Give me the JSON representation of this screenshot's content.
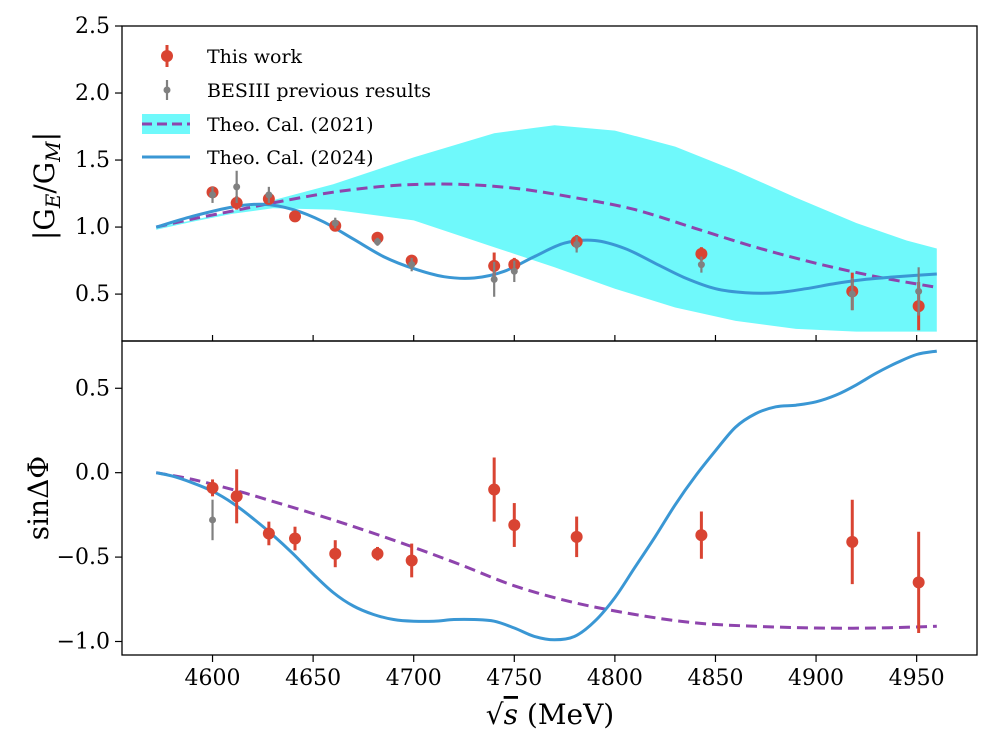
{
  "chart_data": [
    {
      "panel": "top",
      "type": "line",
      "ylabel": "|G_E/G_M|",
      "ylabel_parts": [
        "|G",
        "E",
        "/G",
        "M",
        "|"
      ],
      "xlim": [
        4555,
        4980
      ],
      "ylim": [
        0.15,
        2.5
      ],
      "yticks": [
        0.5,
        1.0,
        1.5,
        2.0,
        2.5
      ],
      "ytick_labels": [
        "0.5",
        "1.0",
        "1.5",
        "2.0",
        "2.5"
      ],
      "legend": {
        "placement": "top-left",
        "entries": [
          {
            "key": "this_work",
            "label": "This work"
          },
          {
            "key": "besiii",
            "label": "BESIII previous results"
          },
          {
            "key": "theo2021",
            "label": "Theo. Cal. (2021)"
          },
          {
            "key": "theo2024",
            "label": "Theo. Cal. (2024)"
          }
        ]
      },
      "colors": {
        "this_work": "#d94432",
        "besiii": "#808080",
        "theo2021": "#8e44ad",
        "theo2024": "#3a97d4",
        "band": "#6ff9fb"
      },
      "band_2021": {
        "x": [
          4572,
          4590,
          4610,
          4630,
          4660,
          4700,
          4740,
          4770,
          4800,
          4830,
          4860,
          4890,
          4920,
          4945,
          4960
        ],
        "upper": [
          1.0,
          1.05,
          1.12,
          1.2,
          1.32,
          1.52,
          1.7,
          1.76,
          1.72,
          1.6,
          1.42,
          1.22,
          1.03,
          0.9,
          0.84
        ],
        "lower": [
          0.98,
          1.04,
          1.1,
          1.14,
          1.13,
          1.05,
          0.85,
          0.7,
          0.54,
          0.4,
          0.3,
          0.24,
          0.22,
          0.22,
          0.22
        ]
      },
      "series_2021": {
        "x": [
          4572,
          4590,
          4610,
          4630,
          4660,
          4690,
          4720,
          4750,
          4780,
          4810,
          4840,
          4870,
          4900,
          4930,
          4960
        ],
        "y": [
          1.0,
          1.06,
          1.12,
          1.18,
          1.26,
          1.31,
          1.32,
          1.29,
          1.22,
          1.13,
          0.99,
          0.85,
          0.73,
          0.63,
          0.55
        ]
      },
      "series_2024": {
        "x": [
          4572,
          4590,
          4610,
          4625,
          4640,
          4655,
          4670,
          4685,
          4700,
          4715,
          4730,
          4745,
          4760,
          4775,
          4790,
          4805,
          4820,
          4835,
          4850,
          4865,
          4880,
          4895,
          4910,
          4925,
          4940,
          4960
        ],
        "y": [
          1.0,
          1.08,
          1.15,
          1.17,
          1.13,
          1.04,
          0.91,
          0.78,
          0.69,
          0.63,
          0.62,
          0.67,
          0.78,
          0.88,
          0.9,
          0.84,
          0.73,
          0.62,
          0.54,
          0.51,
          0.51,
          0.54,
          0.58,
          0.61,
          0.63,
          0.65
        ]
      },
      "this_work": [
        {
          "x": 4600,
          "y": 1.26,
          "err": 0.04
        },
        {
          "x": 4612,
          "y": 1.18,
          "err": 0.05
        },
        {
          "x": 4628,
          "y": 1.21,
          "err": 0.04
        },
        {
          "x": 4641,
          "y": 1.08,
          "err": 0.02
        },
        {
          "x": 4661,
          "y": 1.01,
          "err": 0.04
        },
        {
          "x": 4682,
          "y": 0.92,
          "err": 0.03
        },
        {
          "x": 4699,
          "y": 0.75,
          "err": 0.03
        },
        {
          "x": 4740,
          "y": 0.71,
          "err": 0.1
        },
        {
          "x": 4750,
          "y": 0.72,
          "err": 0.05
        },
        {
          "x": 4781,
          "y": 0.89,
          "err": 0.05
        },
        {
          "x": 4843,
          "y": 0.8,
          "err": 0.05
        },
        {
          "x": 4918,
          "y": 0.52,
          "err": 0.14
        },
        {
          "x": 4951,
          "y": 0.41,
          "err": 0.18
        }
      ],
      "besiii": [
        {
          "x": 4600,
          "y": 1.24,
          "err": 0.06
        },
        {
          "x": 4612,
          "y": 1.3,
          "err": 0.12
        },
        {
          "x": 4628,
          "y": 1.24,
          "err": 0.06
        },
        {
          "x": 4661,
          "y": 1.03,
          "err": 0.04
        },
        {
          "x": 4682,
          "y": 0.89,
          "err": 0.03
        },
        {
          "x": 4699,
          "y": 0.72,
          "err": 0.05
        },
        {
          "x": 4740,
          "y": 0.61,
          "err": 0.13
        },
        {
          "x": 4750,
          "y": 0.67,
          "err": 0.08
        },
        {
          "x": 4781,
          "y": 0.87,
          "err": 0.06
        },
        {
          "x": 4843,
          "y": 0.72,
          "err": 0.06
        },
        {
          "x": 4918,
          "y": 0.5,
          "err": 0.12
        },
        {
          "x": 4951,
          "y": 0.52,
          "err": 0.18
        }
      ]
    },
    {
      "panel": "bottom",
      "type": "line",
      "ylabel": "sinΔΦ",
      "xlabel": "√s (MeV)",
      "xlabel_parts": [
        "√",
        "s",
        " (MeV)"
      ],
      "xlim": [
        4555,
        4980
      ],
      "ylim": [
        -1.08,
        0.78
      ],
      "yticks": [
        -1.0,
        -0.5,
        0.0,
        0.5
      ],
      "ytick_labels": [
        "−1.0",
        "−0.5",
        "0.0",
        "0.5"
      ],
      "xticks": [
        4600,
        4650,
        4700,
        4750,
        4800,
        4850,
        4900,
        4950
      ],
      "xtick_labels": [
        "4600",
        "4650",
        "4700",
        "4750",
        "4800",
        "4850",
        "4900",
        "4950"
      ],
      "series_2021": {
        "x": [
          4572,
          4590,
          4610,
          4630,
          4660,
          4690,
          4720,
          4750,
          4780,
          4810,
          4840,
          4870,
          4900,
          4930,
          4960
        ],
        "y": [
          0.0,
          -0.04,
          -0.1,
          -0.17,
          -0.28,
          -0.4,
          -0.53,
          -0.67,
          -0.77,
          -0.84,
          -0.89,
          -0.91,
          -0.92,
          -0.92,
          -0.91
        ]
      },
      "series_2024": {
        "x": [
          4572,
          4580,
          4590,
          4600,
          4610,
          4620,
          4630,
          4640,
          4650,
          4660,
          4670,
          4680,
          4690,
          4700,
          4710,
          4720,
          4730,
          4740,
          4750,
          4760,
          4770,
          4780,
          4790,
          4800,
          4810,
          4820,
          4830,
          4840,
          4850,
          4860,
          4870,
          4880,
          4890,
          4900,
          4910,
          4920,
          4930,
          4940,
          4950,
          4960
        ],
        "y": [
          0.0,
          -0.02,
          -0.06,
          -0.11,
          -0.18,
          -0.27,
          -0.37,
          -0.48,
          -0.6,
          -0.71,
          -0.79,
          -0.84,
          -0.87,
          -0.88,
          -0.88,
          -0.87,
          -0.87,
          -0.88,
          -0.92,
          -0.97,
          -0.99,
          -0.97,
          -0.88,
          -0.74,
          -0.56,
          -0.38,
          -0.19,
          -0.02,
          0.13,
          0.27,
          0.35,
          0.39,
          0.4,
          0.42,
          0.46,
          0.52,
          0.59,
          0.65,
          0.7,
          0.72
        ]
      },
      "this_work": [
        {
          "x": 4600,
          "y": -0.09,
          "err": 0.05
        },
        {
          "x": 4612,
          "y": -0.14,
          "err": 0.16
        },
        {
          "x": 4628,
          "y": -0.36,
          "err": 0.07
        },
        {
          "x": 4641,
          "y": -0.39,
          "err": 0.07
        },
        {
          "x": 4661,
          "y": -0.48,
          "err": 0.08
        },
        {
          "x": 4682,
          "y": -0.48,
          "err": 0.04
        },
        {
          "x": 4699,
          "y": -0.52,
          "err": 0.1
        },
        {
          "x": 4740,
          "y": -0.1,
          "err": 0.19
        },
        {
          "x": 4750,
          "y": -0.31,
          "err": 0.13
        },
        {
          "x": 4781,
          "y": -0.38,
          "err": 0.12
        },
        {
          "x": 4843,
          "y": -0.37,
          "err": 0.14
        },
        {
          "x": 4918,
          "y": -0.41,
          "err": 0.25
        },
        {
          "x": 4951,
          "y": -0.65,
          "err": 0.3
        }
      ],
      "besiii": [
        {
          "x": 4600,
          "y": -0.28,
          "err": 0.12
        }
      ]
    }
  ]
}
